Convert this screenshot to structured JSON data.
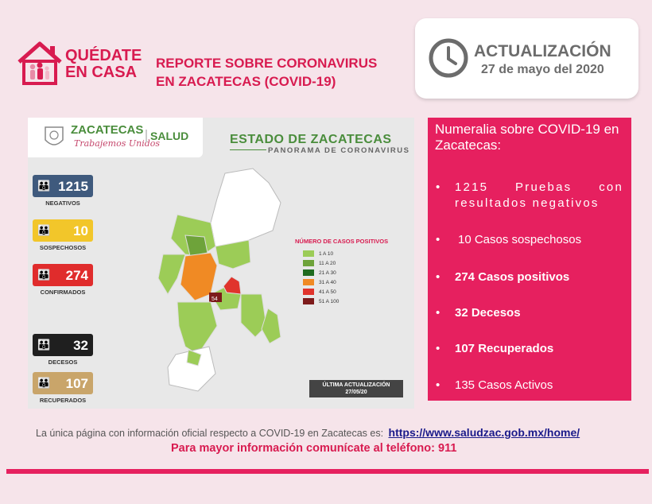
{
  "header": {
    "stay_home_line1": "QUÉDATE",
    "stay_home_line2": "EN CASA",
    "report_line1": "REPORTE SOBRE CORONAVIRUS",
    "report_line2": "EN ZACATECAS  (COVID-19)"
  },
  "update": {
    "label": "ACTUALIZACIÓN",
    "date": "27 de mayo del 2020"
  },
  "infographic": {
    "org_name": "ZACATECAS",
    "org_slogan": "Trabajemos Unidos",
    "salud": "SALUD",
    "state_title": "ESTADO DE ZACATECAS",
    "state_subtitle": "PANORAMA DE CORONAVIRUS",
    "stats": [
      {
        "value": "1215",
        "label": "NEGATIVOS",
        "color": "#3f5a7d"
      },
      {
        "value": "10",
        "label": "SOSPECHOSOS",
        "color": "#f2c62a"
      },
      {
        "value": "274",
        "label": "CONFIRMADOS",
        "color": "#e02c2c"
      },
      {
        "value": "32",
        "label": "DECESOS",
        "color": "#1f1f1f"
      },
      {
        "value": "107",
        "label": "RECUPERADOS",
        "color": "#c9a56a"
      }
    ],
    "legend_title": "NÚMERO DE CASOS POSITIVOS",
    "legend": [
      {
        "label": "1 A 10",
        "color": "#9ccc57"
      },
      {
        "label": "11 A 20",
        "color": "#6ea33a"
      },
      {
        "label": "21 A 30",
        "color": "#1f6b1f"
      },
      {
        "label": "31 A 40",
        "color": "#f08a24"
      },
      {
        "label": "41 A 50",
        "color": "#e0342c"
      },
      {
        "label": "51 A 100",
        "color": "#7d1b1b"
      }
    ],
    "map_label": "54",
    "last_update_label": "ÚLTIMA ACTUALIZACIÓN",
    "last_update_date": "27/05/20"
  },
  "numeralia": {
    "title": "Numeralia sobre COVID-19 en Zacatecas:",
    "bullet_char": "•",
    "items": [
      {
        "text": "1215 Pruebas con resultados negativos",
        "bold": false
      },
      {
        "text": "10 Casos sospechosos",
        "bold": false
      },
      {
        "text": "274 Casos positivos",
        "bold": true
      },
      {
        "text": "32 Decesos",
        "bold": true
      },
      {
        "text": "107 Recuperados",
        "bold": true
      },
      {
        "text": "135 Casos Activos",
        "bold": false
      }
    ]
  },
  "footer": {
    "note": "La única página con información oficial respecto a COVID-19 en Zacatecas es:",
    "link": "https://www.saludzac.gob.mx/home/",
    "phone": "Para mayor información comunícate al teléfono: 911"
  },
  "colors": {
    "brand_pink": "#e6205f",
    "header_pink": "#d81b50",
    "background": "#f6e4ea"
  }
}
